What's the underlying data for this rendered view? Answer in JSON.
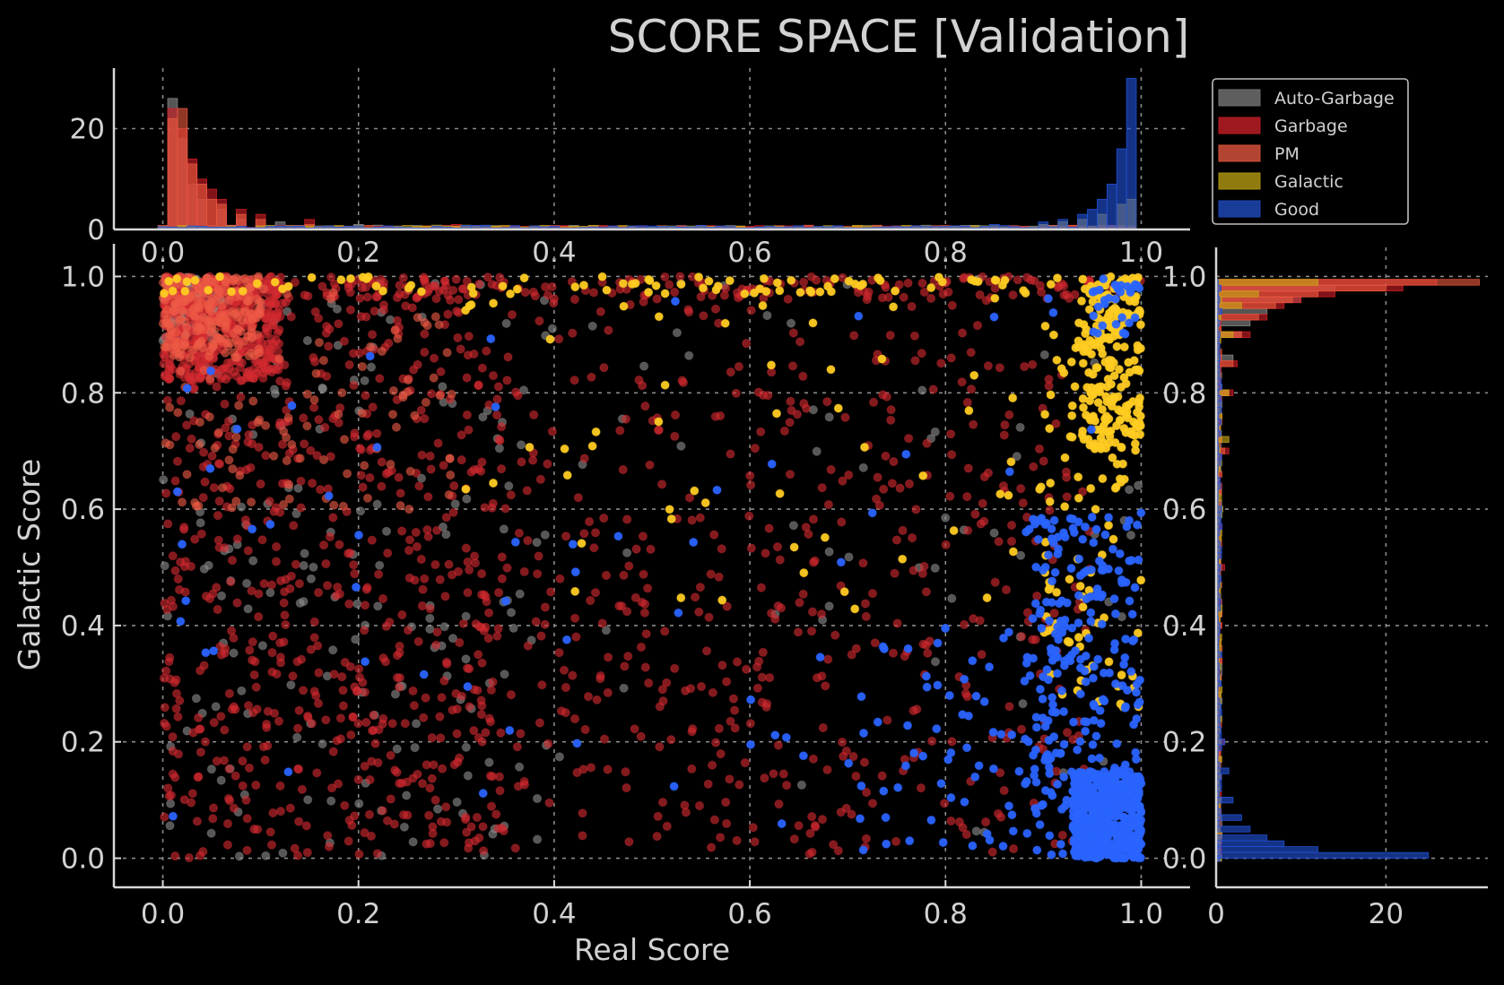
{
  "chart_data": {
    "type": "scatter",
    "title": "SCORE SPACE [Validation]",
    "xlabel": "Real Score",
    "ylabel": "Galactic Score",
    "xlim": [
      -0.05,
      1.05
    ],
    "ylim": [
      -0.05,
      1.05
    ],
    "x_ticks": [
      "0.0",
      "0.2",
      "0.4",
      "0.6",
      "0.8",
      "1.0"
    ],
    "y_ticks": [
      "0.0",
      "0.2",
      "0.4",
      "0.6",
      "0.8",
      "1.0"
    ],
    "top_hist_y_ticks": [
      "0",
      "20"
    ],
    "right_hist_x_ticks": [
      "0",
      "20"
    ],
    "grid": true,
    "legend_placement": "top-right",
    "legend": [
      {
        "name": "Auto-Garbage",
        "color": "#6e6e6e"
      },
      {
        "name": "Garbage",
        "color": "#b81c24"
      },
      {
        "name": "PM",
        "color": "#d2503a"
      },
      {
        "name": "Galactic",
        "color": "#a89010"
      },
      {
        "name": "Good",
        "color": "#1e46b4"
      }
    ],
    "series": [
      {
        "name": "Auto-Garbage",
        "point_color": "#8c8c8c",
        "hist_color": "#8a8a8a",
        "clusters": [
          {
            "x": [
              0.0,
              0.06
            ],
            "y": [
              0.88,
              1.0
            ],
            "count": 120
          },
          {
            "x": [
              0.0,
              0.4
            ],
            "y": [
              0.0,
              1.0
            ],
            "count": 180
          },
          {
            "x": [
              0.4,
              1.0
            ],
            "y": [
              0.0,
              1.0
            ],
            "count": 60
          }
        ],
        "hist_x": [
          [
            0.01,
            26
          ],
          [
            0.02,
            18
          ],
          [
            0.03,
            9
          ],
          [
            0.04,
            6
          ],
          [
            0.06,
            4
          ],
          [
            0.08,
            2
          ],
          [
            0.12,
            1.5
          ],
          [
            0.2,
            1
          ]
        ],
        "hist_y": [
          [
            0.98,
            14
          ],
          [
            0.96,
            10
          ],
          [
            0.94,
            6
          ],
          [
            0.92,
            4
          ],
          [
            0.9,
            3
          ],
          [
            0.86,
            2
          ],
          [
            0.8,
            1.2
          ],
          [
            0.6,
            0.6
          ],
          [
            0.3,
            0.5
          ]
        ]
      },
      {
        "name": "Garbage",
        "point_color": "#d42a30",
        "hist_color": "#d01e26",
        "clusters": [
          {
            "x": [
              0.0,
              0.12
            ],
            "y": [
              0.82,
              1.0
            ],
            "count": 420
          },
          {
            "x": [
              0.0,
              0.35
            ],
            "y": [
              0.0,
              1.0
            ],
            "count": 700
          },
          {
            "x": [
              0.35,
              0.95
            ],
            "y": [
              0.0,
              1.0
            ],
            "count": 500
          },
          {
            "x": [
              0.0,
              1.0
            ],
            "y": [
              0.96,
              1.0
            ],
            "count": 180
          }
        ],
        "hist_x": [
          [
            0.01,
            24
          ],
          [
            0.02,
            20
          ],
          [
            0.03,
            14
          ],
          [
            0.04,
            10
          ],
          [
            0.05,
            8
          ],
          [
            0.06,
            6
          ],
          [
            0.08,
            4
          ],
          [
            0.1,
            3
          ],
          [
            0.15,
            2
          ],
          [
            0.3,
            1
          ],
          [
            0.6,
            0.6
          ]
        ],
        "hist_y": [
          [
            0.99,
            26
          ],
          [
            0.98,
            22
          ],
          [
            0.97,
            14
          ],
          [
            0.96,
            10
          ],
          [
            0.95,
            8
          ],
          [
            0.93,
            6
          ],
          [
            0.9,
            4
          ],
          [
            0.85,
            2.5
          ],
          [
            0.8,
            2
          ],
          [
            0.7,
            1.5
          ],
          [
            0.5,
            1
          ],
          [
            0.2,
            1
          ]
        ]
      },
      {
        "name": "PM",
        "point_color": "#ee5a46",
        "hist_color": "#e8583e",
        "clusters": [
          {
            "x": [
              0.0,
              0.1
            ],
            "y": [
              0.86,
              1.0
            ],
            "count": 220
          },
          {
            "x": [
              0.0,
              0.3
            ],
            "y": [
              0.6,
              1.0
            ],
            "count": 120
          }
        ],
        "hist_x": [
          [
            0.01,
            22
          ],
          [
            0.02,
            24
          ],
          [
            0.03,
            13
          ],
          [
            0.04,
            9
          ],
          [
            0.05,
            6
          ],
          [
            0.06,
            5
          ],
          [
            0.08,
            3
          ],
          [
            0.1,
            2
          ],
          [
            0.15,
            1
          ]
        ],
        "hist_y": [
          [
            0.99,
            31
          ],
          [
            0.98,
            20
          ],
          [
            0.97,
            12
          ],
          [
            0.96,
            9
          ],
          [
            0.95,
            7
          ],
          [
            0.93,
            5
          ],
          [
            0.9,
            3
          ],
          [
            0.85,
            2
          ],
          [
            0.8,
            1.5
          ],
          [
            0.7,
            1
          ]
        ]
      },
      {
        "name": "Galactic",
        "point_color": "#ffcc22",
        "hist_color": "#c8a818",
        "clusters": [
          {
            "x": [
              0.94,
              1.0
            ],
            "y": [
              0.7,
              1.0
            ],
            "count": 190
          },
          {
            "x": [
              0.9,
              1.0
            ],
            "y": [
              0.25,
              1.0
            ],
            "count": 110
          },
          {
            "x": [
              0.0,
              1.0
            ],
            "y": [
              0.97,
              1.0
            ],
            "count": 90
          },
          {
            "x": [
              0.3,
              0.95
            ],
            "y": [
              0.4,
              1.0
            ],
            "count": 60
          }
        ],
        "hist_x": [
          [
            0.9,
            1
          ],
          [
            0.92,
            1.5
          ],
          [
            0.94,
            2
          ],
          [
            0.96,
            3
          ],
          [
            0.98,
            5
          ],
          [
            0.99,
            6
          ],
          [
            0.5,
            0.4
          ],
          [
            0.7,
            0.5
          ]
        ],
        "hist_y": [
          [
            0.99,
            12
          ],
          [
            0.97,
            5
          ],
          [
            0.95,
            3
          ],
          [
            0.9,
            2
          ],
          [
            0.8,
            1.5
          ],
          [
            0.72,
            1.5
          ],
          [
            0.6,
            0.8
          ],
          [
            0.4,
            0.5
          ]
        ]
      },
      {
        "name": "Good",
        "point_color": "#2a64ff",
        "hist_color": "#2252d8",
        "clusters": [
          {
            "x": [
              0.93,
              1.0
            ],
            "y": [
              0.0,
              0.15
            ],
            "count": 520
          },
          {
            "x": [
              0.88,
              1.0
            ],
            "y": [
              0.0,
              0.6
            ],
            "count": 240
          },
          {
            "x": [
              0.7,
              1.0
            ],
            "y": [
              0.0,
              0.4
            ],
            "count": 90
          },
          {
            "x": [
              0.0,
              1.0
            ],
            "y": [
              0.0,
              1.0
            ],
            "count": 60
          },
          {
            "x": [
              0.95,
              1.0
            ],
            "y": [
              0.9,
              1.0
            ],
            "count": 30
          }
        ],
        "hist_x": [
          [
            0.99,
            30
          ],
          [
            0.98,
            16
          ],
          [
            0.97,
            9
          ],
          [
            0.96,
            6
          ],
          [
            0.95,
            4
          ],
          [
            0.94,
            3
          ],
          [
            0.92,
            2
          ],
          [
            0.9,
            1.5
          ],
          [
            0.85,
            1
          ],
          [
            0.8,
            0.6
          ],
          [
            0.6,
            0.3
          ]
        ],
        "hist_y": [
          [
            0.005,
            25
          ],
          [
            0.015,
            12
          ],
          [
            0.025,
            8
          ],
          [
            0.035,
            6
          ],
          [
            0.05,
            4
          ],
          [
            0.07,
            3
          ],
          [
            0.1,
            2
          ],
          [
            0.15,
            1.5
          ],
          [
            0.2,
            1
          ],
          [
            0.3,
            0.6
          ]
        ]
      }
    ]
  }
}
